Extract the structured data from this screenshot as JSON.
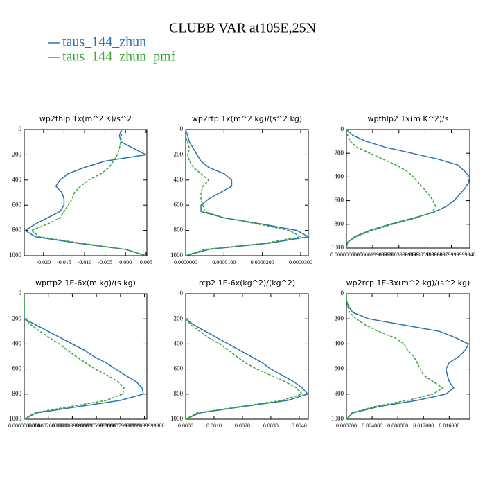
{
  "title": "CLUBB VAR at105E,25N",
  "chart_data": [
    {
      "type": "line",
      "title": "wp2thlp  1x(m^2 K)/s^2",
      "levels": [
        0,
        50,
        100,
        150,
        200,
        250,
        300,
        350,
        400,
        450,
        500,
        550,
        600,
        650,
        700,
        750,
        800,
        850,
        900,
        950,
        1000
      ],
      "xlim": [
        -0.0247,
        0.0052
      ],
      "ylim": [
        1000,
        0
      ],
      "xticks": [
        {
          "value": -0.02,
          "label": "-0.020"
        },
        {
          "value": -0.015,
          "label": "-0.015"
        },
        {
          "value": -0.01,
          "label": "-0.010"
        },
        {
          "value": -0.005,
          "label": "-0.005"
        },
        {
          "value": 0,
          "label": "0.000"
        },
        {
          "value": 0.005,
          "label": "0.005"
        }
      ],
      "yticks": [
        0,
        200,
        400,
        600,
        800,
        1000
      ],
      "series": [
        {
          "name": "taus_144_zhun",
          "color": "#2a72b0",
          "dashed": false,
          "values": [
            -0.001,
            -0.0015,
            -0.001,
            0.002,
            0.005,
            -0.005,
            -0.01,
            -0.014,
            -0.016,
            -0.017,
            -0.0155,
            -0.015,
            -0.015,
            -0.016,
            -0.019,
            -0.022,
            -0.0245,
            -0.022,
            -0.012,
            0.0,
            0.005
          ]
        },
        {
          "name": "taus_144_zhun_pmf",
          "color": "#3aa33a",
          "dashed": true,
          "values": [
            -0.001,
            -0.001,
            -0.0012,
            -0.0015,
            -0.002,
            -0.003,
            -0.004,
            -0.006,
            -0.009,
            -0.011,
            -0.0125,
            -0.013,
            -0.014,
            -0.015,
            -0.016,
            -0.019,
            -0.023,
            -0.021,
            -0.011,
            0.0,
            0.005
          ]
        }
      ]
    },
    {
      "type": "line",
      "title": "wp2rtp  1x(m^2 kg)/(s^2 kg)",
      "levels": [
        0,
        50,
        100,
        150,
        200,
        250,
        300,
        350,
        400,
        450,
        500,
        550,
        600,
        650,
        700,
        750,
        800,
        850,
        900,
        950,
        1000
      ],
      "xlim": [
        0,
        3.2e-05
      ],
      "ylim": [
        1000,
        0
      ],
      "xticks": [
        {
          "value": 0,
          "label": "0.0000000"
        },
        {
          "value": 1e-05,
          "label": "0.0000100"
        },
        {
          "value": 2e-05,
          "label": "0.0000200"
        },
        {
          "value": 3e-05,
          "label": "0.0000300"
        }
      ],
      "yticks": [
        0,
        200,
        400,
        600,
        800,
        1000
      ],
      "series": [
        {
          "name": "taus_144_zhun",
          "color": "#2a72b0",
          "dashed": false,
          "values": [
            0,
            5e-07,
            1e-06,
            2e-06,
            3e-06,
            4e-06,
            6e-06,
            1e-05,
            1.2e-05,
            1.2e-05,
            9e-06,
            6e-06,
            4e-06,
            4e-06,
            1e-05,
            2e-05,
            2.9e-05,
            3.2e-05,
            2.2e-05,
            6e-06,
            0
          ]
        },
        {
          "name": "taus_144_zhun_pmf",
          "color": "#3aa33a",
          "dashed": true,
          "values": [
            0,
            0,
            5e-07,
            1e-06,
            5e-07,
            1e-06,
            2e-06,
            4e-06,
            6e-06,
            4.5e-06,
            4e-06,
            4e-06,
            4.5e-06,
            5e-06,
            1e-05,
            1.9e-05,
            2.7e-05,
            3e-05,
            2.1e-05,
            5e-06,
            0
          ]
        }
      ]
    },
    {
      "type": "line",
      "title": "wpthlp2  1x(m K^2)/s",
      "levels": [
        0,
        50,
        100,
        150,
        200,
        250,
        300,
        350,
        400,
        450,
        500,
        550,
        600,
        650,
        700,
        750,
        800,
        850,
        900,
        950,
        1000
      ],
      "xlim": [
        0,
        9.4e-06
      ],
      "ylim": [
        1000,
        0
      ],
      "xticks": [
        {
          "value": 0,
          "label": "0.0000000000"
        },
        {
          "value": 2e-06,
          "label": "0.0000019999999"
        },
        {
          "value": 4e-06,
          "label": "0.0000039999999"
        },
        {
          "value": 6e-06,
          "label": "0.0000059999999"
        },
        {
          "value": 8e-06,
          "label": "0.0000079999999940"
        }
      ],
      "yticks": [
        0,
        200,
        400,
        600,
        800,
        1000
      ],
      "series": [
        {
          "name": "taus_144_zhun",
          "color": "#2a72b0",
          "dashed": false,
          "values": [
            0,
            5e-07,
            1.5e-06,
            3e-06,
            5e-06,
            7e-06,
            8.5e-06,
            9e-06,
            9.4e-06,
            9.3e-06,
            9e-06,
            8.6e-06,
            8.2e-06,
            7.6e-06,
            6.6e-06,
            5e-06,
            3.3e-06,
            1.8e-06,
            7e-07,
            1e-07,
            0
          ]
        },
        {
          "name": "taus_144_zhun_pmf",
          "color": "#3aa33a",
          "dashed": true,
          "values": [
            0,
            1e-07,
            3e-07,
            8e-07,
            1.8e-06,
            2.8e-06,
            3.8e-06,
            4.6e-06,
            5.1e-06,
            5.5e-06,
            5.9e-06,
            6.3e-06,
            6.6e-06,
            6.8e-06,
            6.5e-06,
            5.2e-06,
            3.5e-06,
            2e-06,
            8e-07,
            1e-07,
            0
          ]
        }
      ]
    },
    {
      "type": "line",
      "title": "wprtp2  1E-6x(m kg)/(s kg)",
      "levels": [
        0,
        50,
        100,
        150,
        200,
        250,
        300,
        350,
        400,
        450,
        500,
        550,
        600,
        650,
        700,
        750,
        800,
        850,
        900,
        950,
        1000
      ],
      "xlim": [
        0,
        1.02e-05
      ],
      "ylim": [
        1000,
        0
      ],
      "xticks": [
        {
          "value": 0,
          "label": "0.0000000000"
        },
        {
          "value": 2e-06,
          "label": "0.0000020000000"
        },
        {
          "value": 4e-06,
          "label": "0.0000039999999"
        },
        {
          "value": 6e-06,
          "label": "0.0000059999999"
        },
        {
          "value": 8e-06,
          "label": "0.0000079999999"
        },
        {
          "value": 1e-05,
          "label": "0.0000099999980"
        }
      ],
      "yticks": [
        0,
        200,
        400,
        600,
        800,
        1000
      ],
      "series": [
        {
          "name": "taus_144_zhun",
          "color": "#2a72b0",
          "dashed": false,
          "values": [
            0,
            0,
            0,
            0,
            0,
            1e-06,
            2e-06,
            3e-06,
            4e-06,
            5e-06,
            5.8e-06,
            6.8e-06,
            7.6e-06,
            8.4e-06,
            9.3e-06,
            9.8e-06,
            9.9e-06,
            8e-06,
            4.5e-06,
            1e-06,
            0
          ]
        },
        {
          "name": "taus_144_zhun_pmf",
          "color": "#3aa33a",
          "dashed": true,
          "values": [
            0,
            0,
            0,
            0,
            0,
            6e-07,
            1.3e-06,
            2.1e-06,
            2.9e-06,
            3.6e-06,
            4.3e-06,
            5.1e-06,
            5.9e-06,
            6.9e-06,
            7.8e-06,
            8.3e-06,
            8.2e-06,
            6.8e-06,
            3.8e-06,
            8e-07,
            0
          ]
        }
      ]
    },
    {
      "type": "line",
      "title": "rcp2  1E-6x(kg^2)/(kg^2)",
      "levels": [
        0,
        50,
        100,
        150,
        200,
        250,
        300,
        350,
        400,
        450,
        500,
        550,
        600,
        650,
        700,
        750,
        800,
        850,
        900,
        950,
        1000
      ],
      "xlim": [
        0,
        0.00432
      ],
      "ylim": [
        1000,
        0
      ],
      "xticks": [
        {
          "value": 0,
          "label": "0.0000"
        },
        {
          "value": 0.001,
          "label": "0.0010"
        },
        {
          "value": 0.002,
          "label": "0.0020"
        },
        {
          "value": 0.003,
          "label": "0.0030"
        },
        {
          "value": 0.004,
          "label": "0.0040"
        }
      ],
      "yticks": [
        0,
        200,
        400,
        600,
        800,
        1000
      ],
      "series": [
        {
          "name": "taus_144_zhun",
          "color": "#2a72b0",
          "dashed": false,
          "values": [
            0,
            0,
            0,
            0,
            0,
            0.0003,
            0.0007,
            0.0011,
            0.0015,
            0.0019,
            0.0023,
            0.0027,
            0.003,
            0.0034,
            0.0038,
            0.0041,
            0.0043,
            0.0036,
            0.002,
            0.0005,
            0
          ]
        },
        {
          "name": "taus_144_zhun_pmf",
          "color": "#3aa33a",
          "dashed": true,
          "values": [
            0,
            0,
            0,
            0,
            0,
            0.0002,
            0.0005,
            0.0008,
            0.0012,
            0.0015,
            0.0018,
            0.0021,
            0.0025,
            0.003,
            0.0035,
            0.0039,
            0.0041,
            0.0034,
            0.0019,
            0.0004,
            0
          ]
        }
      ]
    },
    {
      "type": "line",
      "title": "wp2rcp  1E-3x(m^2 kg)/(s^2 kg)",
      "levels": [
        0,
        50,
        100,
        150,
        200,
        250,
        300,
        350,
        400,
        450,
        500,
        550,
        600,
        650,
        700,
        750,
        800,
        850,
        900,
        950,
        1000
      ],
      "xlim": [
        0,
        0.0192
      ],
      "ylim": [
        1000,
        0
      ],
      "xticks": [
        {
          "value": 0,
          "label": "0.000000"
        },
        {
          "value": 0.004,
          "label": "0.004000"
        },
        {
          "value": 0.008,
          "label": "0.008000"
        },
        {
          "value": 0.012,
          "label": "0.012000"
        },
        {
          "value": 0.016,
          "label": "0.016000"
        }
      ],
      "yticks": [
        0,
        200,
        400,
        600,
        800,
        1000
      ],
      "series": [
        {
          "name": "taus_144_zhun",
          "color": "#2a72b0",
          "dashed": false,
          "values": [
            0,
            0,
            0.0003,
            0.001,
            0.0035,
            0.009,
            0.0145,
            0.017,
            0.019,
            0.0185,
            0.0175,
            0.016,
            0.0155,
            0.0157,
            0.016,
            0.0167,
            0.0155,
            0.011,
            0.005,
            0.001,
            0
          ]
        },
        {
          "name": "taus_144_zhun_pmf",
          "color": "#3aa33a",
          "dashed": true,
          "values": [
            0,
            0,
            0.0002,
            0.0005,
            0.0015,
            0.003,
            0.005,
            0.0075,
            0.009,
            0.0095,
            0.0105,
            0.011,
            0.0115,
            0.012,
            0.0135,
            0.015,
            0.0135,
            0.0095,
            0.0043,
            0.0008,
            0
          ]
        }
      ]
    }
  ]
}
